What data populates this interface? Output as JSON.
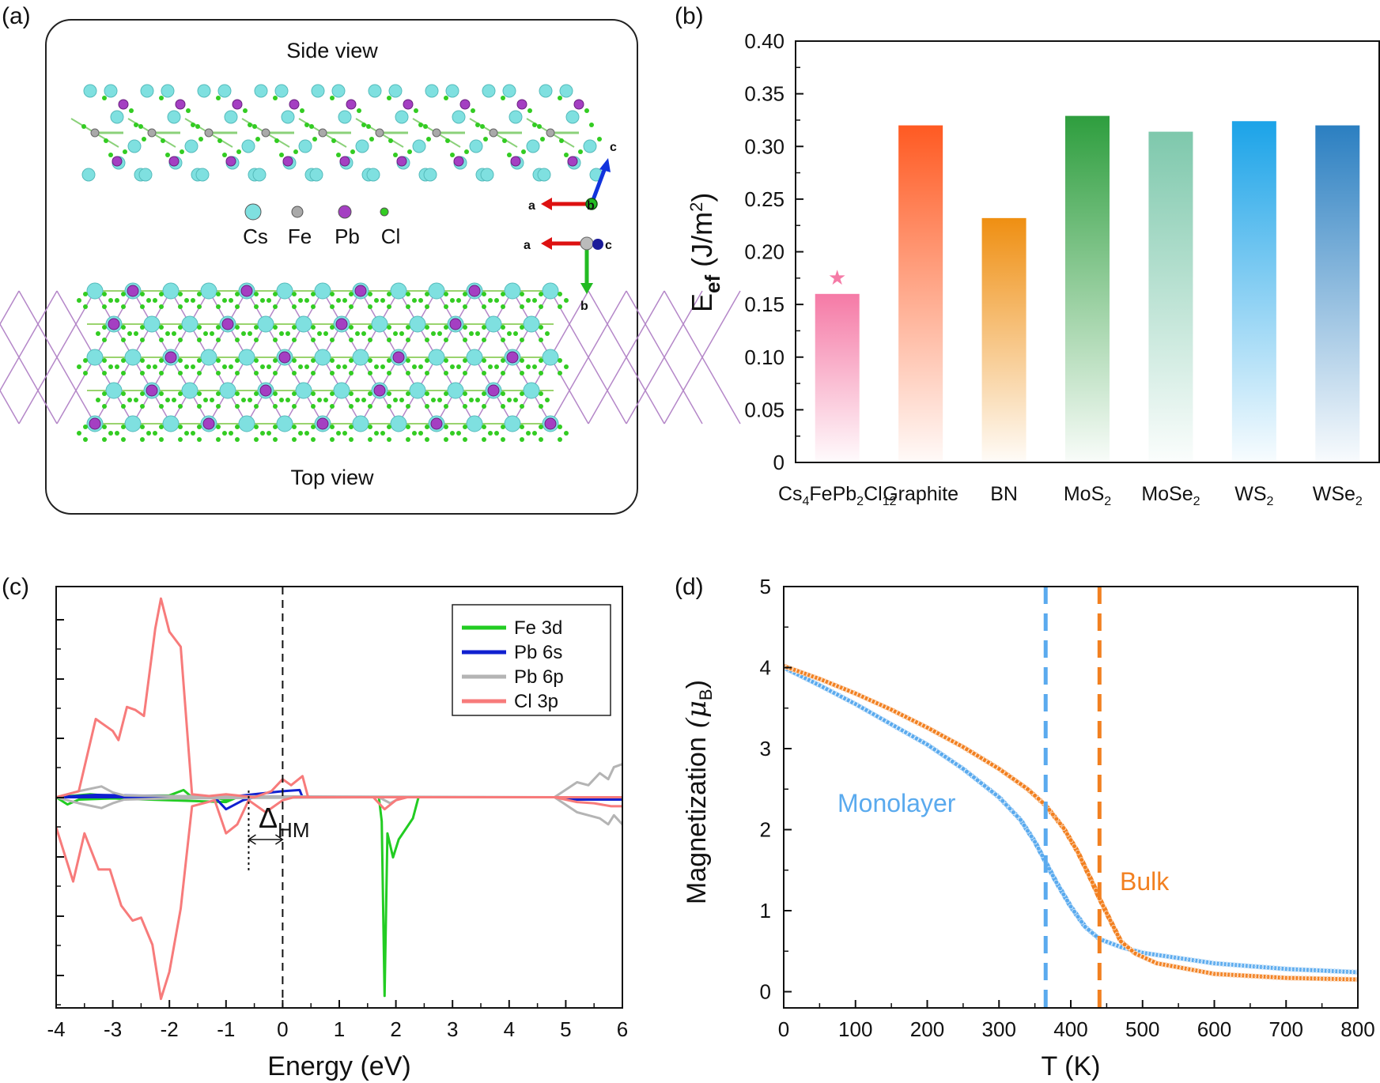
{
  "panels": {
    "a": {
      "label": "(a)",
      "side_view": "Side view",
      "top_view": "Top view",
      "atoms": [
        {
          "name": "Cs",
          "color": "#7fe0e0"
        },
        {
          "name": "Fe",
          "color": "#a9a9a9"
        },
        {
          "name": "Pb",
          "color": "#a43fc2"
        },
        {
          "name": "Cl",
          "color": "#33cc22"
        }
      ],
      "axes_side": {
        "a": "a",
        "b": "b",
        "c": "c"
      },
      "axes_top": {
        "a": "a",
        "b": "b",
        "c": "c"
      }
    },
    "b": {
      "label": "(b)"
    },
    "c": {
      "label": "(c)",
      "delta_main": "Δ",
      "delta_sub": "HM"
    },
    "d": {
      "label": "(d)"
    }
  },
  "chart_data": [
    {
      "panel": "b",
      "type": "bar",
      "categories": [
        "Cs4FePb2Cl12",
        "Graphite",
        "BN",
        "MoS2",
        "MoSe2",
        "WS2",
        "WSe2"
      ],
      "category_parts": [
        [
          [
            "Cs",
            ""
          ],
          [
            "4",
            "sub"
          ],
          [
            "FePb",
            ""
          ],
          [
            "2",
            "sub"
          ],
          [
            "Cl",
            ""
          ],
          [
            "12",
            "sub"
          ]
        ],
        [
          [
            "Graphite",
            ""
          ]
        ],
        [
          [
            "BN",
            ""
          ]
        ],
        [
          [
            "MoS",
            ""
          ],
          [
            "2",
            "sub"
          ]
        ],
        [
          [
            "MoSe",
            ""
          ],
          [
            "2",
            "sub"
          ]
        ],
        [
          [
            "WS",
            ""
          ],
          [
            "2",
            "sub"
          ]
        ],
        [
          [
            "WSe",
            ""
          ],
          [
            "2",
            "sub"
          ]
        ]
      ],
      "values": [
        0.16,
        0.32,
        0.232,
        0.329,
        0.314,
        0.324,
        0.32
      ],
      "colors": [
        "#f57aa6",
        "#ff5a22",
        "#ef8f12",
        "#2e9e3e",
        "#7ec8ac",
        "#1ba3e8",
        "#2b7fc1"
      ],
      "ylabel_main": "E",
      "ylabel_sub": "ef",
      "ylabel_rest": " (J/m",
      "ylabel_sup": "2",
      "ylabel_end": ")",
      "ylim": [
        0,
        0.4
      ],
      "yticks": [
        "0",
        "0.05",
        "0.10",
        "0.15",
        "0.20",
        "0.25",
        "0.30",
        "0.35",
        "0.40"
      ],
      "star_marker": {
        "category": "Cs4FePb2Cl12",
        "symbol": "★",
        "color": "#f57aa6"
      }
    },
    {
      "panel": "c",
      "type": "line",
      "xlabel": "Energy (eV)",
      "xlim": [
        -4,
        6
      ],
      "ylim": [
        -3.5,
        3.5
      ],
      "xticks": [
        "-4",
        "-3",
        "-2",
        "-1",
        "0",
        "1",
        "2",
        "3",
        "4",
        "5",
        "6"
      ],
      "fermi_level": 0,
      "delta_hm": [
        -0.6,
        0
      ],
      "series": [
        {
          "name": "Fe 3d",
          "color": "#22cc22",
          "up": [
            [
              -4,
              0
            ],
            [
              -3.4,
              0.05
            ],
            [
              -3,
              0.02
            ],
            [
              -2,
              0.03
            ],
            [
              -1.75,
              0.12
            ],
            [
              -1.6,
              0
            ],
            [
              -1.2,
              0
            ],
            [
              -1,
              -0.05
            ],
            [
              -0.9,
              0
            ],
            [
              6,
              0
            ]
          ],
          "down": [
            [
              -4,
              0
            ],
            [
              -3.8,
              -0.12
            ],
            [
              -3.6,
              -0.04
            ],
            [
              -3,
              -0.02
            ],
            [
              -1,
              -0.08
            ],
            [
              -0.8,
              0
            ],
            [
              1.7,
              0
            ],
            [
              1.75,
              -0.4
            ],
            [
              1.8,
              -3.3
            ],
            [
              1.85,
              -0.6
            ],
            [
              1.95,
              -1.0
            ],
            [
              2.05,
              -0.7
            ],
            [
              2.3,
              -0.35
            ],
            [
              2.4,
              0
            ],
            [
              6,
              0
            ]
          ]
        },
        {
          "name": "Pb 6s",
          "color": "#1020d0",
          "up": [
            [
              -4,
              0
            ],
            [
              -3.3,
              0.04
            ],
            [
              -2,
              0.02
            ],
            [
              -1,
              0
            ],
            [
              0,
              0.1
            ],
            [
              0.3,
              0.12
            ],
            [
              0.35,
              0
            ],
            [
              6,
              0
            ]
          ],
          "down": [
            [
              -4,
              0
            ],
            [
              -1.2,
              0
            ],
            [
              -1,
              -0.2
            ],
            [
              -0.7,
              -0.05
            ],
            [
              -0.5,
              0
            ],
            [
              4.8,
              0
            ],
            [
              5.2,
              -0.04
            ],
            [
              6,
              -0.04
            ]
          ]
        },
        {
          "name": "Pb 6p",
          "color": "#b4b4b4",
          "up": [
            [
              -4,
              0
            ],
            [
              -3.6,
              0.1
            ],
            [
              -3.2,
              0.18
            ],
            [
              -3,
              0.08
            ],
            [
              -2.8,
              0.03
            ],
            [
              -2,
              0.02
            ],
            [
              4.8,
              0
            ],
            [
              5.2,
              0.25
            ],
            [
              5.4,
              0.2
            ],
            [
              5.6,
              0.4
            ],
            [
              5.75,
              0.3
            ],
            [
              5.85,
              0.5
            ],
            [
              6,
              0.55
            ]
          ],
          "down": [
            [
              -4,
              0
            ],
            [
              -3.6,
              -0.1
            ],
            [
              -3.2,
              -0.18
            ],
            [
              -3,
              -0.1
            ],
            [
              -2.8,
              -0.04
            ],
            [
              -2,
              -0.02
            ],
            [
              1.7,
              0
            ],
            [
              1.9,
              -0.1
            ],
            [
              2.1,
              0
            ],
            [
              4.8,
              0
            ],
            [
              5.2,
              -0.25
            ],
            [
              5.4,
              -0.3
            ],
            [
              5.6,
              -0.35
            ],
            [
              5.75,
              -0.45
            ],
            [
              5.85,
              -0.3
            ],
            [
              6,
              -0.45
            ]
          ]
        },
        {
          "name": "Cl 3p",
          "color": "#f77b7b",
          "up": [
            [
              -4,
              0
            ],
            [
              -3.6,
              0.1
            ],
            [
              -3.3,
              1.3
            ],
            [
              -3,
              1.1
            ],
            [
              -2.9,
              0.95
            ],
            [
              -2.75,
              1.5
            ],
            [
              -2.6,
              1.45
            ],
            [
              -2.45,
              1.35
            ],
            [
              -2.25,
              2.8
            ],
            [
              -2.15,
              3.3
            ],
            [
              -2.0,
              2.75
            ],
            [
              -1.8,
              2.5
            ],
            [
              -1.6,
              0.05
            ],
            [
              -1.3,
              0.02
            ],
            [
              -1,
              0.05
            ],
            [
              -0.5,
              0
            ],
            [
              -0.2,
              0.1
            ],
            [
              0,
              0.3
            ],
            [
              0.15,
              0.2
            ],
            [
              0.35,
              0.35
            ],
            [
              0.45,
              0
            ],
            [
              6,
              0
            ],
            [
              6,
              0
            ]
          ],
          "down": [
            [
              -4,
              -0.5
            ],
            [
              -3.7,
              -1.4
            ],
            [
              -3.5,
              -0.6
            ],
            [
              -3.25,
              -1.2
            ],
            [
              -3.05,
              -1.2
            ],
            [
              -2.85,
              -1.8
            ],
            [
              -2.65,
              -2.05
            ],
            [
              -2.5,
              -2.0
            ],
            [
              -2.3,
              -2.45
            ],
            [
              -2.15,
              -3.35
            ],
            [
              -2.0,
              -2.9
            ],
            [
              -1.8,
              -1.85
            ],
            [
              -1.6,
              -0.15
            ],
            [
              -1.2,
              -0.05
            ],
            [
              -1.0,
              -0.6
            ],
            [
              -0.8,
              -0.45
            ],
            [
              -0.6,
              -0.05
            ],
            [
              -0.3,
              -0.25
            ],
            [
              0,
              -0.05
            ],
            [
              0.2,
              0
            ],
            [
              1.6,
              0
            ],
            [
              1.8,
              -0.2
            ],
            [
              2.0,
              -0.05
            ],
            [
              2.2,
              0
            ],
            [
              4.8,
              0
            ],
            [
              5.2,
              -0.08
            ],
            [
              5.5,
              -0.1
            ],
            [
              5.8,
              -0.15
            ],
            [
              6,
              -0.15
            ]
          ]
        }
      ]
    },
    {
      "panel": "d",
      "type": "scatter",
      "xlabel": "T (K)",
      "ylabel_main": "Magnetization",
      "ylabel_unit": "(μ",
      "ylabel_unit_sub": "B",
      "ylabel_unit_end": ")",
      "xlim": [
        0,
        800
      ],
      "ylim": [
        -0.2,
        5
      ],
      "xticks": [
        "0",
        "100",
        "200",
        "300",
        "400",
        "500",
        "600",
        "700",
        "800"
      ],
      "yticks": [
        "0",
        "1",
        "2",
        "3",
        "4",
        "5"
      ],
      "series": [
        {
          "name": "Monolayer",
          "color": "#5aaaee",
          "tc": 365,
          "points": [
            [
              0,
              4.0
            ],
            [
              50,
              3.78
            ],
            [
              100,
              3.55
            ],
            [
              150,
              3.3
            ],
            [
              200,
              3.05
            ],
            [
              250,
              2.75
            ],
            [
              300,
              2.4
            ],
            [
              330,
              2.12
            ],
            [
              350,
              1.85
            ],
            [
              365,
              1.6
            ],
            [
              380,
              1.35
            ],
            [
              400,
              1.05
            ],
            [
              420,
              0.8
            ],
            [
              440,
              0.65
            ],
            [
              470,
              0.55
            ],
            [
              500,
              0.48
            ],
            [
              600,
              0.35
            ],
            [
              700,
              0.28
            ],
            [
              800,
              0.24
            ]
          ]
        },
        {
          "name": "Bulk",
          "color": "#f28020",
          "tc": 440,
          "points": [
            [
              0,
              4.02
            ],
            [
              50,
              3.86
            ],
            [
              100,
              3.68
            ],
            [
              150,
              3.48
            ],
            [
              200,
              3.26
            ],
            [
              250,
              3.02
            ],
            [
              300,
              2.75
            ],
            [
              340,
              2.5
            ],
            [
              365,
              2.3
            ],
            [
              390,
              2.02
            ],
            [
              410,
              1.72
            ],
            [
              430,
              1.35
            ],
            [
              440,
              1.15
            ],
            [
              455,
              0.88
            ],
            [
              470,
              0.62
            ],
            [
              490,
              0.47
            ],
            [
              520,
              0.35
            ],
            [
              600,
              0.22
            ],
            [
              700,
              0.17
            ],
            [
              800,
              0.15
            ]
          ]
        }
      ]
    }
  ]
}
